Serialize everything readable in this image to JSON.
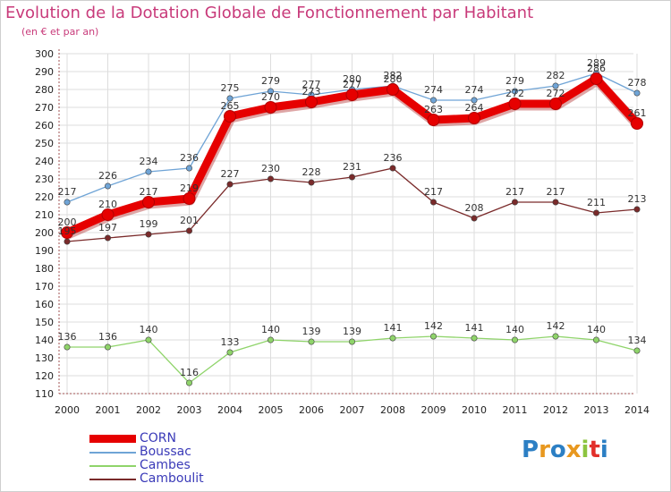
{
  "title": "Evolution de la Dotation Globale de Fonctionnement par Habitant",
  "subtitle": "(en € et par an)",
  "logo": {
    "text": "Proxiti",
    "colors": [
      "#2c7fc4",
      "#e8981f",
      "#2c7fc4",
      "#e8981f",
      "#8cc43f",
      "#e2302b",
      "#2c7fc4"
    ]
  },
  "chart_data": {
    "type": "line",
    "title": "Evolution de la Dotation Globale de Fonctionnement par Habitant",
    "subtitle": "(en € et par an)",
    "x": [
      "2000",
      "2001",
      "2002",
      "2003",
      "2004",
      "2005",
      "2006",
      "2007",
      "2008",
      "2009",
      "2010",
      "2011",
      "2012",
      "2013",
      "2014"
    ],
    "ylim": [
      110,
      300
    ],
    "yticks": [
      110,
      120,
      130,
      140,
      150,
      160,
      170,
      180,
      190,
      200,
      210,
      220,
      230,
      240,
      250,
      260,
      270,
      280,
      290,
      300
    ],
    "grid": true,
    "legend_position": "bottom-left",
    "series": [
      {
        "name": "CORN",
        "color": "#e60000",
        "emphasis": true,
        "values": [
          200,
          210,
          217,
          219,
          265,
          270,
          273,
          277,
          280,
          263,
          264,
          272,
          272,
          286,
          261
        ]
      },
      {
        "name": "Boussac",
        "color": "#6fa4d6",
        "values": [
          217,
          226,
          234,
          236,
          275,
          279,
          277,
          280,
          282,
          274,
          274,
          279,
          282,
          289,
          278
        ]
      },
      {
        "name": "Cambes",
        "color": "#8fd46a",
        "values": [
          136,
          136,
          140,
          116,
          133,
          140,
          139,
          139,
          141,
          142,
          141,
          140,
          142,
          140,
          134
        ]
      },
      {
        "name": "Camboulit",
        "color": "#7a2a2a",
        "values": [
          195,
          197,
          199,
          201,
          227,
          230,
          228,
          231,
          236,
          217,
          208,
          217,
          217,
          211,
          213
        ]
      }
    ],
    "data_labels": {
      "CORN": [
        "200",
        "210",
        "217",
        "219",
        "265",
        "270",
        "273",
        "277",
        "280",
        "263",
        "264",
        "272",
        "272",
        "286",
        "261"
      ],
      "Boussac": [
        "217",
        "226",
        "234",
        "236",
        "275",
        "279",
        "277",
        "280",
        "282",
        "274",
        "274",
        "279",
        "282",
        "289",
        "278"
      ],
      "Cambes": [
        "136",
        "136",
        "140",
        "116",
        "133",
        "140",
        "139",
        "139",
        "141",
        "142",
        "141",
        "140",
        "142",
        "140",
        "134"
      ],
      "Camboulit": [
        "195",
        "197",
        "199",
        "201",
        "227",
        "230",
        "228",
        "231",
        "236",
        "217",
        "208",
        "217",
        "217",
        "211",
        "213"
      ]
    }
  }
}
